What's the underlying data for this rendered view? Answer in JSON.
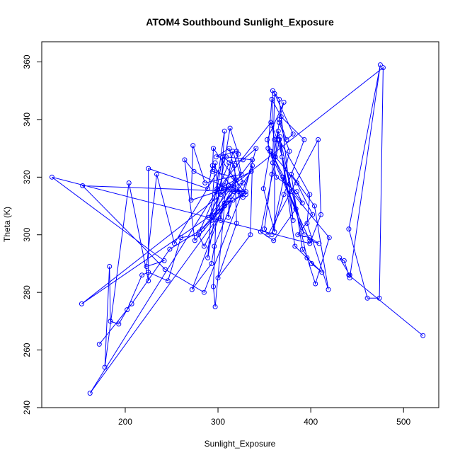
{
  "chart_data": {
    "type": "line",
    "title": "ATOM4 Southbound Sunlight_Exposure",
    "xlabel": "Sunlight_Exposure",
    "ylabel": "Theta (K)",
    "xlim": [
      110,
      538
    ],
    "ylim": [
      240,
      367
    ],
    "x_ticks": [
      200,
      300,
      400,
      500
    ],
    "y_ticks": [
      240,
      260,
      280,
      300,
      320,
      340,
      360
    ],
    "grid": false,
    "legend": "none",
    "series": [
      {
        "color": "#0000ff",
        "marker": "open-circle",
        "points": [
          [
            521,
            265
          ],
          [
            441,
            286
          ],
          [
            436,
            291
          ],
          [
            431,
            292
          ],
          [
            442,
            286
          ],
          [
            442,
            285
          ],
          [
            475,
            359
          ],
          [
            441,
            302
          ],
          [
            461,
            278
          ],
          [
            474,
            278
          ],
          [
            478,
            358
          ],
          [
            153,
            276
          ],
          [
            330,
            315
          ],
          [
            304,
            316
          ],
          [
            307,
            317
          ],
          [
            336,
            322
          ],
          [
            162,
            245
          ],
          [
            298,
            315
          ],
          [
            357,
            339
          ],
          [
            364,
            333
          ],
          [
            393,
            300
          ],
          [
            370,
            320
          ],
          [
            391,
            311
          ],
          [
            385,
            315
          ],
          [
            363,
            320
          ],
          [
            357,
            329
          ],
          [
            379,
            315
          ],
          [
            420,
            299
          ],
          [
            405,
            283
          ],
          [
            396,
            292
          ],
          [
            365,
            336
          ],
          [
            362,
            327
          ],
          [
            385,
            318
          ],
          [
            402,
            307
          ],
          [
            386,
            300
          ],
          [
            399,
            299
          ],
          [
            409,
            297
          ],
          [
            399,
            298
          ],
          [
            354,
            330
          ],
          [
            358,
            347
          ],
          [
            368,
            341
          ],
          [
            393,
            333
          ],
          [
            371,
            314
          ],
          [
            358,
            300
          ],
          [
            377,
            329
          ],
          [
            366,
            339
          ],
          [
            360,
            327
          ],
          [
            384,
            309
          ],
          [
            360,
            298
          ],
          [
            346,
            301
          ],
          [
            367,
            334
          ],
          [
            369,
            327
          ],
          [
            383,
            296
          ],
          [
            412,
            287
          ],
          [
            401,
            290
          ],
          [
            391,
            295
          ],
          [
            379,
            321
          ],
          [
            404,
            310
          ],
          [
            419,
            281
          ],
          [
            396,
            304
          ],
          [
            399,
            314
          ],
          [
            366,
            333
          ],
          [
            381,
            305
          ],
          [
            366,
            347
          ],
          [
            359,
            350
          ],
          [
            358,
            338
          ],
          [
            361,
            333
          ],
          [
            361,
            301
          ],
          [
            349,
            316
          ],
          [
            356,
            329
          ],
          [
            353,
            333
          ],
          [
            371,
            346
          ],
          [
            366,
            340
          ],
          [
            374,
            333
          ],
          [
            381,
            335
          ],
          [
            361,
            349
          ],
          [
            359,
            325
          ],
          [
            358,
            321
          ],
          [
            350,
            302
          ],
          [
            354,
            300
          ],
          [
            408,
            333
          ],
          [
            411,
            307
          ],
          [
            399,
            297
          ],
          [
            121,
            320
          ],
          [
            242,
            291
          ],
          [
            223,
            289
          ],
          [
            234,
            321
          ],
          [
            253,
            297
          ],
          [
            309,
            327
          ],
          [
            337,
            326
          ],
          [
            290,
            306
          ],
          [
            322,
            328
          ],
          [
            313,
            337
          ],
          [
            289,
            292
          ],
          [
            297,
            325
          ],
          [
            303,
            305
          ],
          [
            316,
            329
          ],
          [
            327,
            318
          ],
          [
            271,
            312
          ],
          [
            273,
            331
          ],
          [
            286,
            318
          ],
          [
            325,
            321
          ],
          [
            320,
            329
          ],
          [
            298,
            327
          ],
          [
            312,
            330
          ],
          [
            324,
            314
          ],
          [
            317,
            315
          ],
          [
            274,
            322
          ],
          [
            264,
            326
          ],
          [
            275,
            298
          ],
          [
            312,
            312
          ],
          [
            311,
            306
          ],
          [
            317,
            320
          ],
          [
            294,
            322
          ],
          [
            295,
            330
          ],
          [
            330,
            314
          ],
          [
            316,
            312
          ],
          [
            296,
            296
          ],
          [
            293,
            290
          ],
          [
            272,
            281
          ],
          [
            307,
            311
          ],
          [
            320,
            319
          ],
          [
            303,
            314
          ],
          [
            307,
            336
          ],
          [
            293,
            305
          ],
          [
            311,
            317
          ],
          [
            327,
            315
          ],
          [
            154,
            317
          ],
          [
            243,
            288
          ],
          [
            285,
            280
          ],
          [
            337,
            324
          ],
          [
            335,
            300
          ],
          [
            300,
            285
          ],
          [
            320,
            304
          ],
          [
            318,
            324
          ],
          [
            305,
            327
          ],
          [
            299,
            316
          ],
          [
            295,
            282
          ],
          [
            297,
            275
          ],
          [
            307,
            310
          ],
          [
            285,
            296
          ],
          [
            279,
            300
          ],
          [
            260,
            299
          ],
          [
            246,
            284
          ],
          [
            225,
            287
          ],
          [
            218,
            286
          ],
          [
            202,
            274
          ],
          [
            193,
            269
          ],
          [
            184,
            270
          ],
          [
            183,
            289
          ],
          [
            178,
            254
          ],
          [
            204,
            318
          ],
          [
            225,
            284
          ],
          [
            225,
            323
          ],
          [
            289,
            316
          ],
          [
            294,
            324
          ],
          [
            327,
            313
          ],
          [
            341,
            330
          ],
          [
            327,
            326
          ],
          [
            312,
            325
          ],
          [
            280,
            301
          ],
          [
            319,
            316
          ],
          [
            301,
            308
          ],
          [
            283,
            302
          ],
          [
            248,
            295
          ],
          [
            207,
            276
          ],
          [
            172,
            262
          ]
        ]
      }
    ]
  }
}
